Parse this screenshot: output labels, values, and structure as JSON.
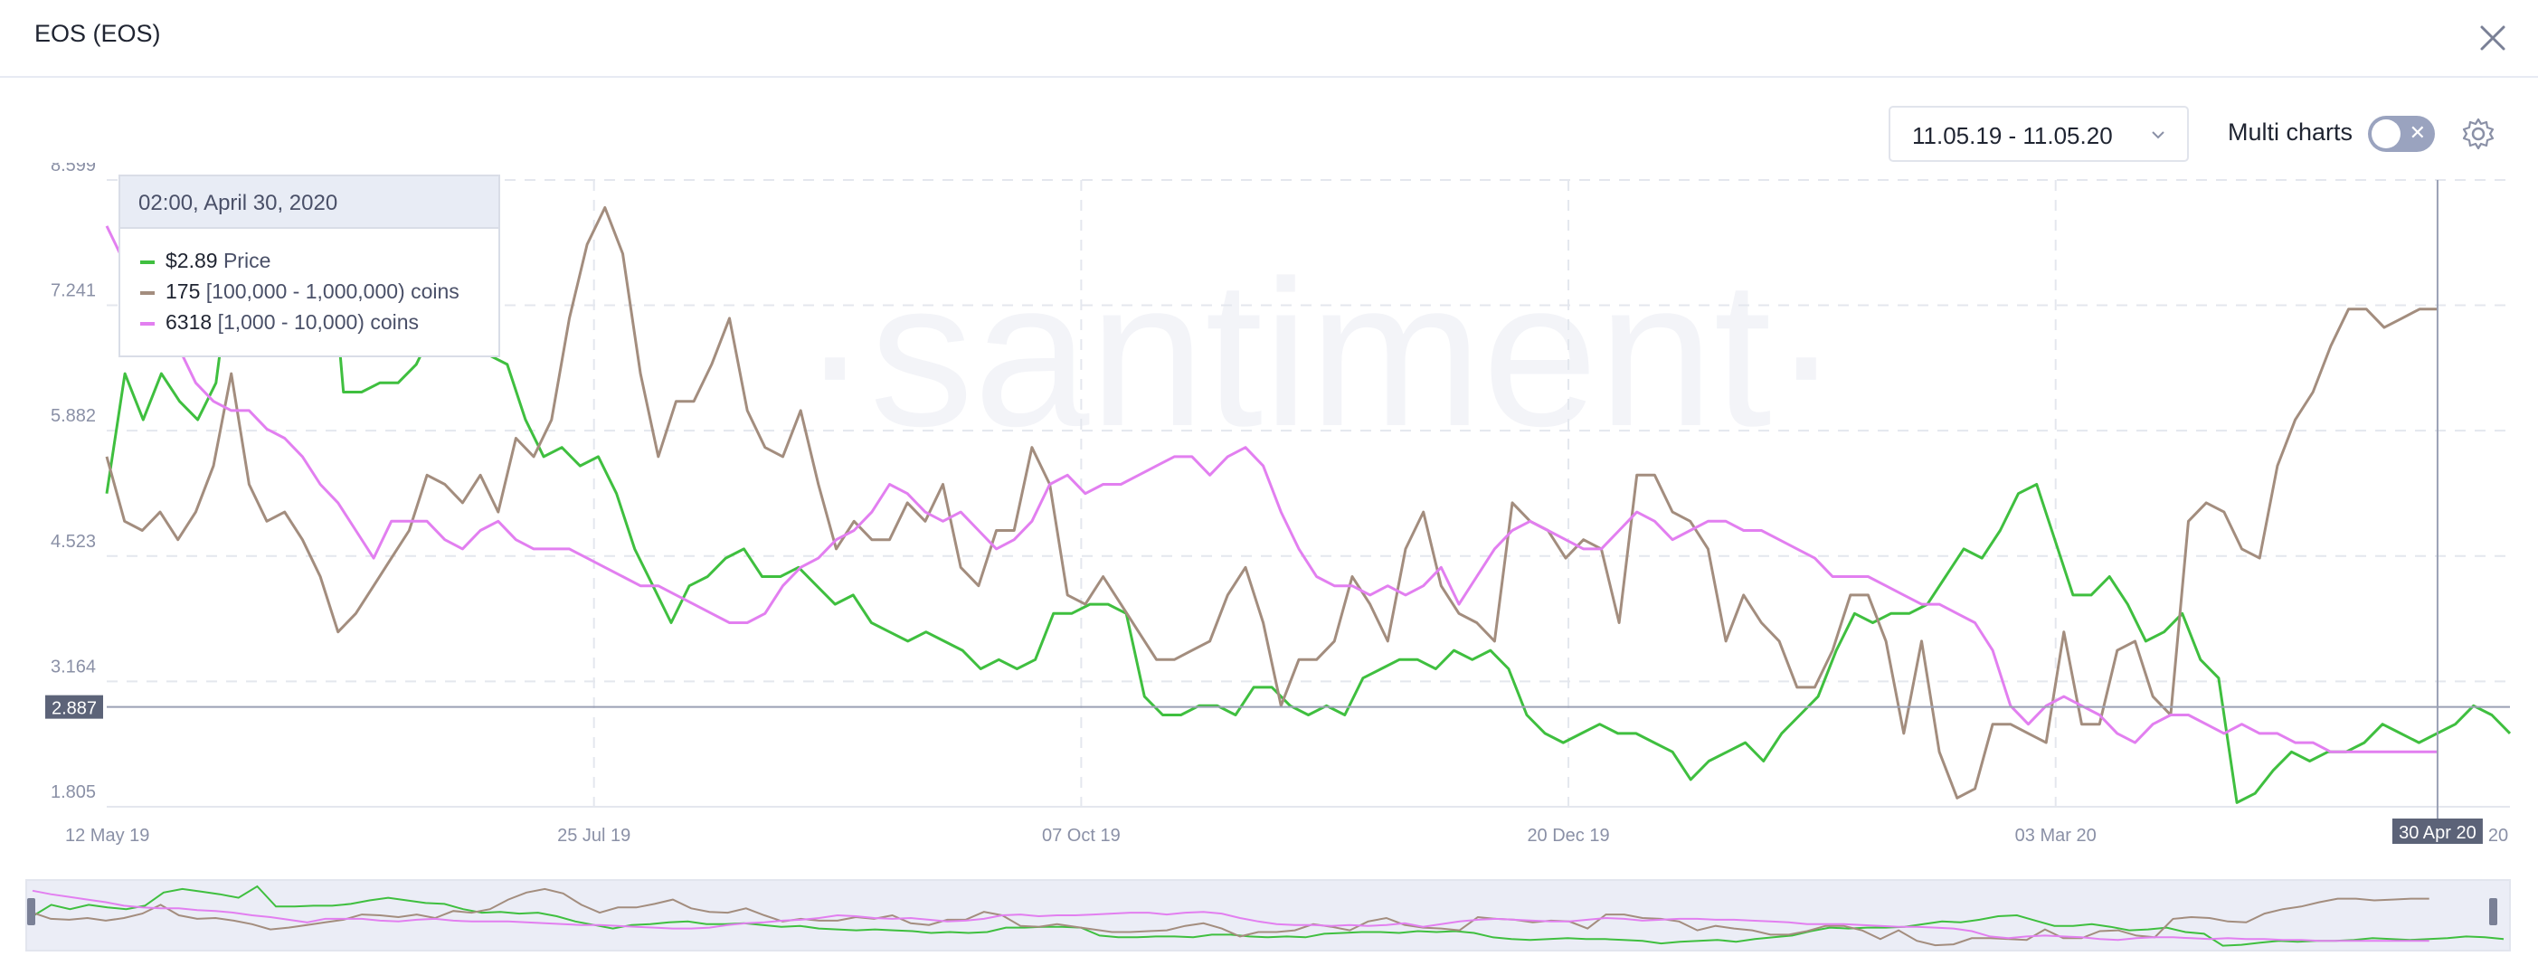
{
  "title": "EOS (EOS)",
  "date_range": "11.05.19 - 11.05.20",
  "multi_charts_label": "Multi charts",
  "toggle_symbol": "✕",
  "watermark": "·santiment·",
  "tooltip": {
    "date": "02:00, April 30, 2020",
    "rows": [
      {
        "value": "$2.89",
        "label": "Price",
        "color": "#3fbf3f"
      },
      {
        "value": "175",
        "label": "[100,000  - 1,000,000) coins",
        "color": "#a38d7e"
      },
      {
        "value": "6318",
        "label": "[1,000 - 10,000) coins",
        "color": "#e27ff0"
      }
    ]
  },
  "icons": {
    "close": "close-icon",
    "chevron": "chevron-down-icon",
    "settings": "gear-icon"
  },
  "chart_data": {
    "type": "line",
    "x_range": [
      "2019-05-12",
      "2020-05-11"
    ],
    "x_ticks": [
      "12 May 19",
      "25 Jul 19",
      "07 Oct 19",
      "20 Dec 19",
      "03 Mar 20",
      "30 Apr 20",
      "20"
    ],
    "y_ticks": [
      "8.599",
      "7.241",
      "5.882",
      "4.523",
      "3.164",
      "1.805"
    ],
    "ylim": [
      1.805,
      8.599
    ],
    "crosshair": {
      "x": "30 Apr 20",
      "y": "2.887"
    },
    "grid": true,
    "series": [
      {
        "name": "Price",
        "color": "#3fbf3f",
        "end_date": "2020-05-11",
        "values": [
          5.2,
          6.5,
          6.0,
          6.5,
          6.2,
          6.0,
          6.4,
          7.9,
          8.3,
          8.0,
          7.7,
          7.3,
          8.6,
          6.3,
          6.3,
          6.4,
          6.4,
          6.6,
          7.0,
          7.3,
          7.0,
          6.7,
          6.6,
          6.0,
          5.6,
          5.7,
          5.5,
          5.6,
          5.2,
          4.6,
          4.2,
          3.8,
          4.2,
          4.3,
          4.5,
          4.6,
          4.3,
          4.3,
          4.4,
          4.2,
          4.0,
          4.1,
          3.8,
          3.7,
          3.6,
          3.7,
          3.6,
          3.5,
          3.3,
          3.4,
          3.3,
          3.4,
          3.9,
          3.9,
          4.0,
          4.0,
          3.9,
          3.0,
          2.8,
          2.8,
          2.9,
          2.9,
          2.8,
          3.1,
          3.1,
          2.9,
          2.8,
          2.9,
          2.8,
          3.2,
          3.3,
          3.4,
          3.4,
          3.3,
          3.5,
          3.4,
          3.5,
          3.3,
          2.8,
          2.6,
          2.5,
          2.6,
          2.7,
          2.6,
          2.6,
          2.5,
          2.4,
          2.1,
          2.3,
          2.4,
          2.5,
          2.3,
          2.6,
          2.8,
          3.0,
          3.5,
          3.9,
          3.8,
          3.9,
          3.9,
          4.0,
          4.3,
          4.6,
          4.5,
          4.8,
          5.2,
          5.3,
          4.7,
          4.1,
          4.1,
          4.3,
          4.0,
          3.6,
          3.7,
          3.9,
          3.4,
          3.2,
          1.85,
          1.95,
          2.2,
          2.4,
          2.3,
          2.4,
          2.4,
          2.5,
          2.7,
          2.6,
          2.5,
          2.6,
          2.7,
          2.9,
          2.8,
          2.6
        ]
      },
      {
        "name": "[100,000  - 1,000,000) coins",
        "color": "#a38d7e",
        "end_date": "2020-04-30",
        "values": [
          5.6,
          4.9,
          4.8,
          5.0,
          4.7,
          5.0,
          5.5,
          6.5,
          5.3,
          4.9,
          5.0,
          4.7,
          4.3,
          3.7,
          3.9,
          4.2,
          4.5,
          4.8,
          5.4,
          5.3,
          5.1,
          5.4,
          5.0,
          5.8,
          5.6,
          6.0,
          7.1,
          7.9,
          8.3,
          7.8,
          6.5,
          5.6,
          6.2,
          6.2,
          6.6,
          7.1,
          6.1,
          5.7,
          5.6,
          6.1,
          5.3,
          4.6,
          4.9,
          4.7,
          4.7,
          5.1,
          4.9,
          5.3,
          4.4,
          4.2,
          4.8,
          4.8,
          5.7,
          5.3,
          4.1,
          4.0,
          4.3,
          4.0,
          3.7,
          3.4,
          3.4,
          3.5,
          3.6,
          4.1,
          4.4,
          3.8,
          2.9,
          3.4,
          3.4,
          3.6,
          4.3,
          4.0,
          3.6,
          4.6,
          5.0,
          4.2,
          3.9,
          3.8,
          3.6,
          5.1,
          4.9,
          4.8,
          4.5,
          4.7,
          4.6,
          3.8,
          5.4,
          5.4,
          5.0,
          4.9,
          4.6,
          3.6,
          4.1,
          3.8,
          3.6,
          3.1,
          3.1,
          3.5,
          4.1,
          4.1,
          3.6,
          2.6,
          3.6,
          2.4,
          1.9,
          2.0,
          2.7,
          2.7,
          2.6,
          2.5,
          3.7,
          2.7,
          2.7,
          3.5,
          3.6,
          3.0,
          2.8,
          4.9,
          5.1,
          5.0,
          4.6,
          4.5,
          5.5,
          6.0,
          6.3,
          6.8,
          7.2,
          7.2,
          7.0,
          7.1,
          7.2,
          7.2
        ]
      },
      {
        "name": "[1,000 - 10,000) coins",
        "color": "#e27ff0",
        "end_date": "2020-04-30",
        "values": [
          8.1,
          7.7,
          7.4,
          7.1,
          6.8,
          6.4,
          6.2,
          6.1,
          6.1,
          5.9,
          5.8,
          5.6,
          5.3,
          5.1,
          4.8,
          4.5,
          4.9,
          4.9,
          4.9,
          4.7,
          4.6,
          4.8,
          4.9,
          4.7,
          4.6,
          4.6,
          4.6,
          4.5,
          4.4,
          4.3,
          4.2,
          4.2,
          4.1,
          4.0,
          3.9,
          3.8,
          3.8,
          3.9,
          4.2,
          4.4,
          4.5,
          4.7,
          4.8,
          5.0,
          5.3,
          5.2,
          5.0,
          4.9,
          5.0,
          4.8,
          4.6,
          4.7,
          4.9,
          5.3,
          5.4,
          5.2,
          5.3,
          5.3,
          5.4,
          5.5,
          5.6,
          5.6,
          5.4,
          5.6,
          5.7,
          5.5,
          5.0,
          4.6,
          4.3,
          4.2,
          4.2,
          4.1,
          4.2,
          4.1,
          4.2,
          4.4,
          4.0,
          4.3,
          4.6,
          4.8,
          4.9,
          4.8,
          4.7,
          4.6,
          4.6,
          4.8,
          5.0,
          4.9,
          4.7,
          4.8,
          4.9,
          4.9,
          4.8,
          4.8,
          4.7,
          4.6,
          4.5,
          4.3,
          4.3,
          4.3,
          4.2,
          4.1,
          4.0,
          4.0,
          3.9,
          3.8,
          3.5,
          2.9,
          2.7,
          2.9,
          3.0,
          2.9,
          2.8,
          2.6,
          2.5,
          2.7,
          2.8,
          2.8,
          2.7,
          2.6,
          2.7,
          2.6,
          2.6,
          2.5,
          2.5,
          2.4,
          2.4,
          2.4,
          2.4,
          2.4,
          2.4,
          2.4
        ]
      }
    ]
  }
}
